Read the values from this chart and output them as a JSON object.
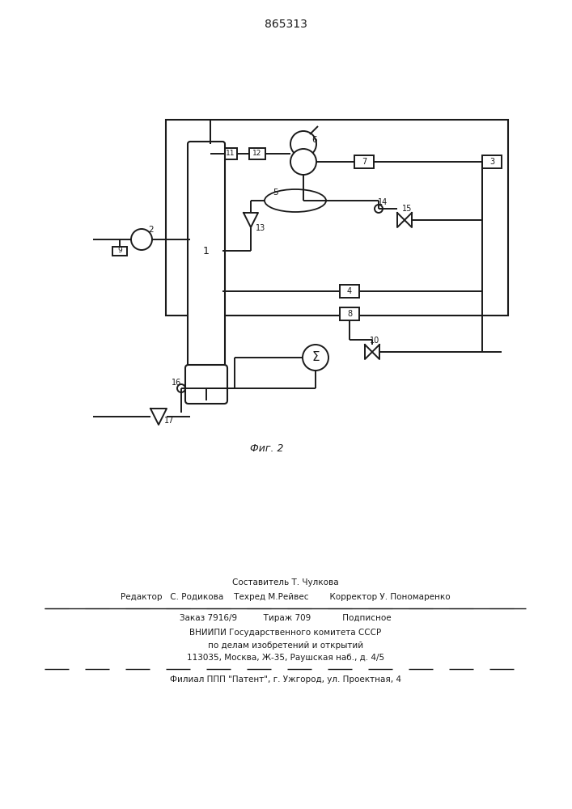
{
  "title": "865313",
  "fig_label": "Фиг. 2",
  "background": "#ffffff",
  "line_color": "#1a1a1a",
  "footer_lines": [
    "Составитель Т. Чулкова",
    "Редактор   С. Родикова    Техред М.Рейвес        Корректор У. Пономаренко",
    "Заказ 7916/9          Тираж 709            Подписное",
    "ВНИИПИ Государственного комитета СССР",
    "по делам изобретений и открытий",
    "113035, Москва, Ж-35, Раушская наб., д. 4/5",
    "Филиал ППП \"Патент\", г. Ужгород, ул. Проектная, 4"
  ]
}
